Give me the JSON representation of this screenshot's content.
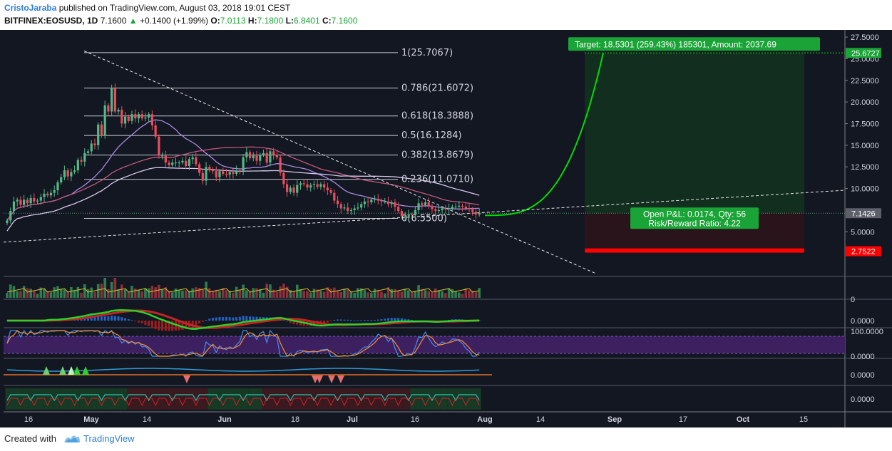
{
  "header": {
    "author": "CristoJaraba",
    "published_text": "published on TradingView.com, August 03, 2018 19:01 CEST",
    "symbol": "BITFINEX:EOSUSD, 1D",
    "last": "7.1600",
    "change": "+0.1400 (+1.99%)",
    "o_label": "O:",
    "o_value": "7.0113",
    "h_label": "H:",
    "h_value": "7.1800",
    "l_label": "L:",
    "l_value": "6.8401",
    "c_label": "C:",
    "c_value": "7.1600"
  },
  "footer": {
    "created_with": "Created with",
    "brand": "TradingView"
  },
  "colors": {
    "background": "#131722",
    "up": "#53b987",
    "down": "#eb4d5c",
    "accent_green": "#1aa336",
    "projection": "#00dd00",
    "stop_red": "#ff0000"
  },
  "chart_data": {
    "type": "candlestick",
    "y_range": [
      0,
      28
    ],
    "price_ticks": [
      "27.5000",
      "25.0000",
      "22.5000",
      "20.0000",
      "17.5000",
      "15.0000",
      "12.5000",
      "10.0000",
      "5.0000"
    ],
    "price_tick_values": [
      27.5,
      25,
      22.5,
      20,
      17.5,
      15,
      12.5,
      10,
      5
    ],
    "x_ticks": [
      "16",
      "May",
      "14",
      "Jun",
      "18",
      "Jul",
      "16",
      "Aug",
      "14",
      "Sep",
      "17",
      "Oct",
      "15"
    ],
    "bold_x_ticks": [
      "May",
      "Jun",
      "Jul",
      "Aug",
      "Sep",
      "Oct"
    ],
    "price_badges": [
      {
        "text": "25.6727",
        "value": 25.6727,
        "color": "#1aa336"
      },
      {
        "text": "7.1426",
        "value": 7.1426,
        "color": "#5d606b"
      },
      {
        "text": "2.7522",
        "value": 2.7522,
        "color": "#ff0000"
      }
    ],
    "fibonacci": [
      {
        "label": "1(25.7067)",
        "value": 25.7067
      },
      {
        "label": "0.786(21.6072)",
        "value": 21.6072
      },
      {
        "label": "0.618(18.3888)",
        "value": 18.3888
      },
      {
        "label": "0.5(16.1284)",
        "value": 16.1284
      },
      {
        "label": "0.382(13.8679)",
        "value": 13.8679
      },
      {
        "label": "0.236(11.0710)",
        "value": 11.071
      },
      {
        "label": "0(6.5500)",
        "value": 6.55
      }
    ],
    "closes": [
      6.3,
      7.4,
      8.5,
      8.7,
      8.1,
      8.7,
      8.3,
      8.9,
      8.5,
      8.6,
      9.0,
      9.4,
      9.2,
      9.5,
      9.8,
      10.7,
      11.3,
      12.1,
      11.4,
      11.9,
      12.1,
      13.3,
      13.1,
      14.1,
      14.3,
      15.2,
      15.0,
      17.4,
      16.1,
      19.6,
      18.9,
      21.6,
      18.9,
      19.1,
      17.5,
      18.3,
      17.8,
      18.6,
      18.1,
      18.6,
      18.1,
      18.2,
      18.6,
      17.3,
      16.0,
      13.8,
      13.8,
      13.0,
      12.7,
      13.0,
      13.0,
      13.0,
      13.2,
      12.6,
      13.4,
      13.6,
      12.8,
      11.8,
      10.9,
      12.5,
      12.1,
      12.0,
      11.3,
      12.0,
      11.7,
      11.6,
      11.9,
      11.7,
      12.1,
      12.0,
      13.6,
      14.2,
      13.5,
      13.8,
      13.2,
      13.9,
      14.1,
      13.0,
      14.3,
      13.9,
      13.6,
      11.8,
      10.5,
      9.6,
      10.1,
      9.5,
      10.4,
      10.6,
      10.5,
      10.1,
      10.4,
      10.5,
      10.2,
      10.5,
      10.1,
      9.8,
      9.5,
      8.6,
      8.2,
      7.7,
      7.8,
      7.4,
      7.5,
      7.7,
      7.8,
      8.2,
      8.5,
      8.4,
      8.7,
      8.8,
      8.6,
      8.5,
      8.5,
      8.2,
      8.4,
      7.9,
      7.4,
      6.8,
      6.9,
      7.0,
      6.9,
      7.5,
      8.3,
      8.1,
      8.4,
      8.0,
      7.6,
      7.4,
      7.5,
      7.7,
      7.6,
      7.7,
      7.9,
      7.9,
      8.0,
      7.9,
      7.7,
      7.6,
      7.3,
      7.0,
      7.16
    ],
    "fib_high": 25.7067,
    "fib_low": 6.55,
    "annotations": {
      "target": "Target: 18.5301 (259.43%) 185301, Amount: 2037.69",
      "open_pl": "Open P&L: 0.0174, Qty: 56",
      "risk_reward": "Risk/Reward Ratio: 4.22"
    },
    "indicators": {
      "macd_label": "0",
      "macd_value": "0.0000",
      "stoch_top": "100.0000",
      "stoch_bottom": "0.0000",
      "ind4_value": "0.0000",
      "ind5_value": "0.0000"
    }
  }
}
